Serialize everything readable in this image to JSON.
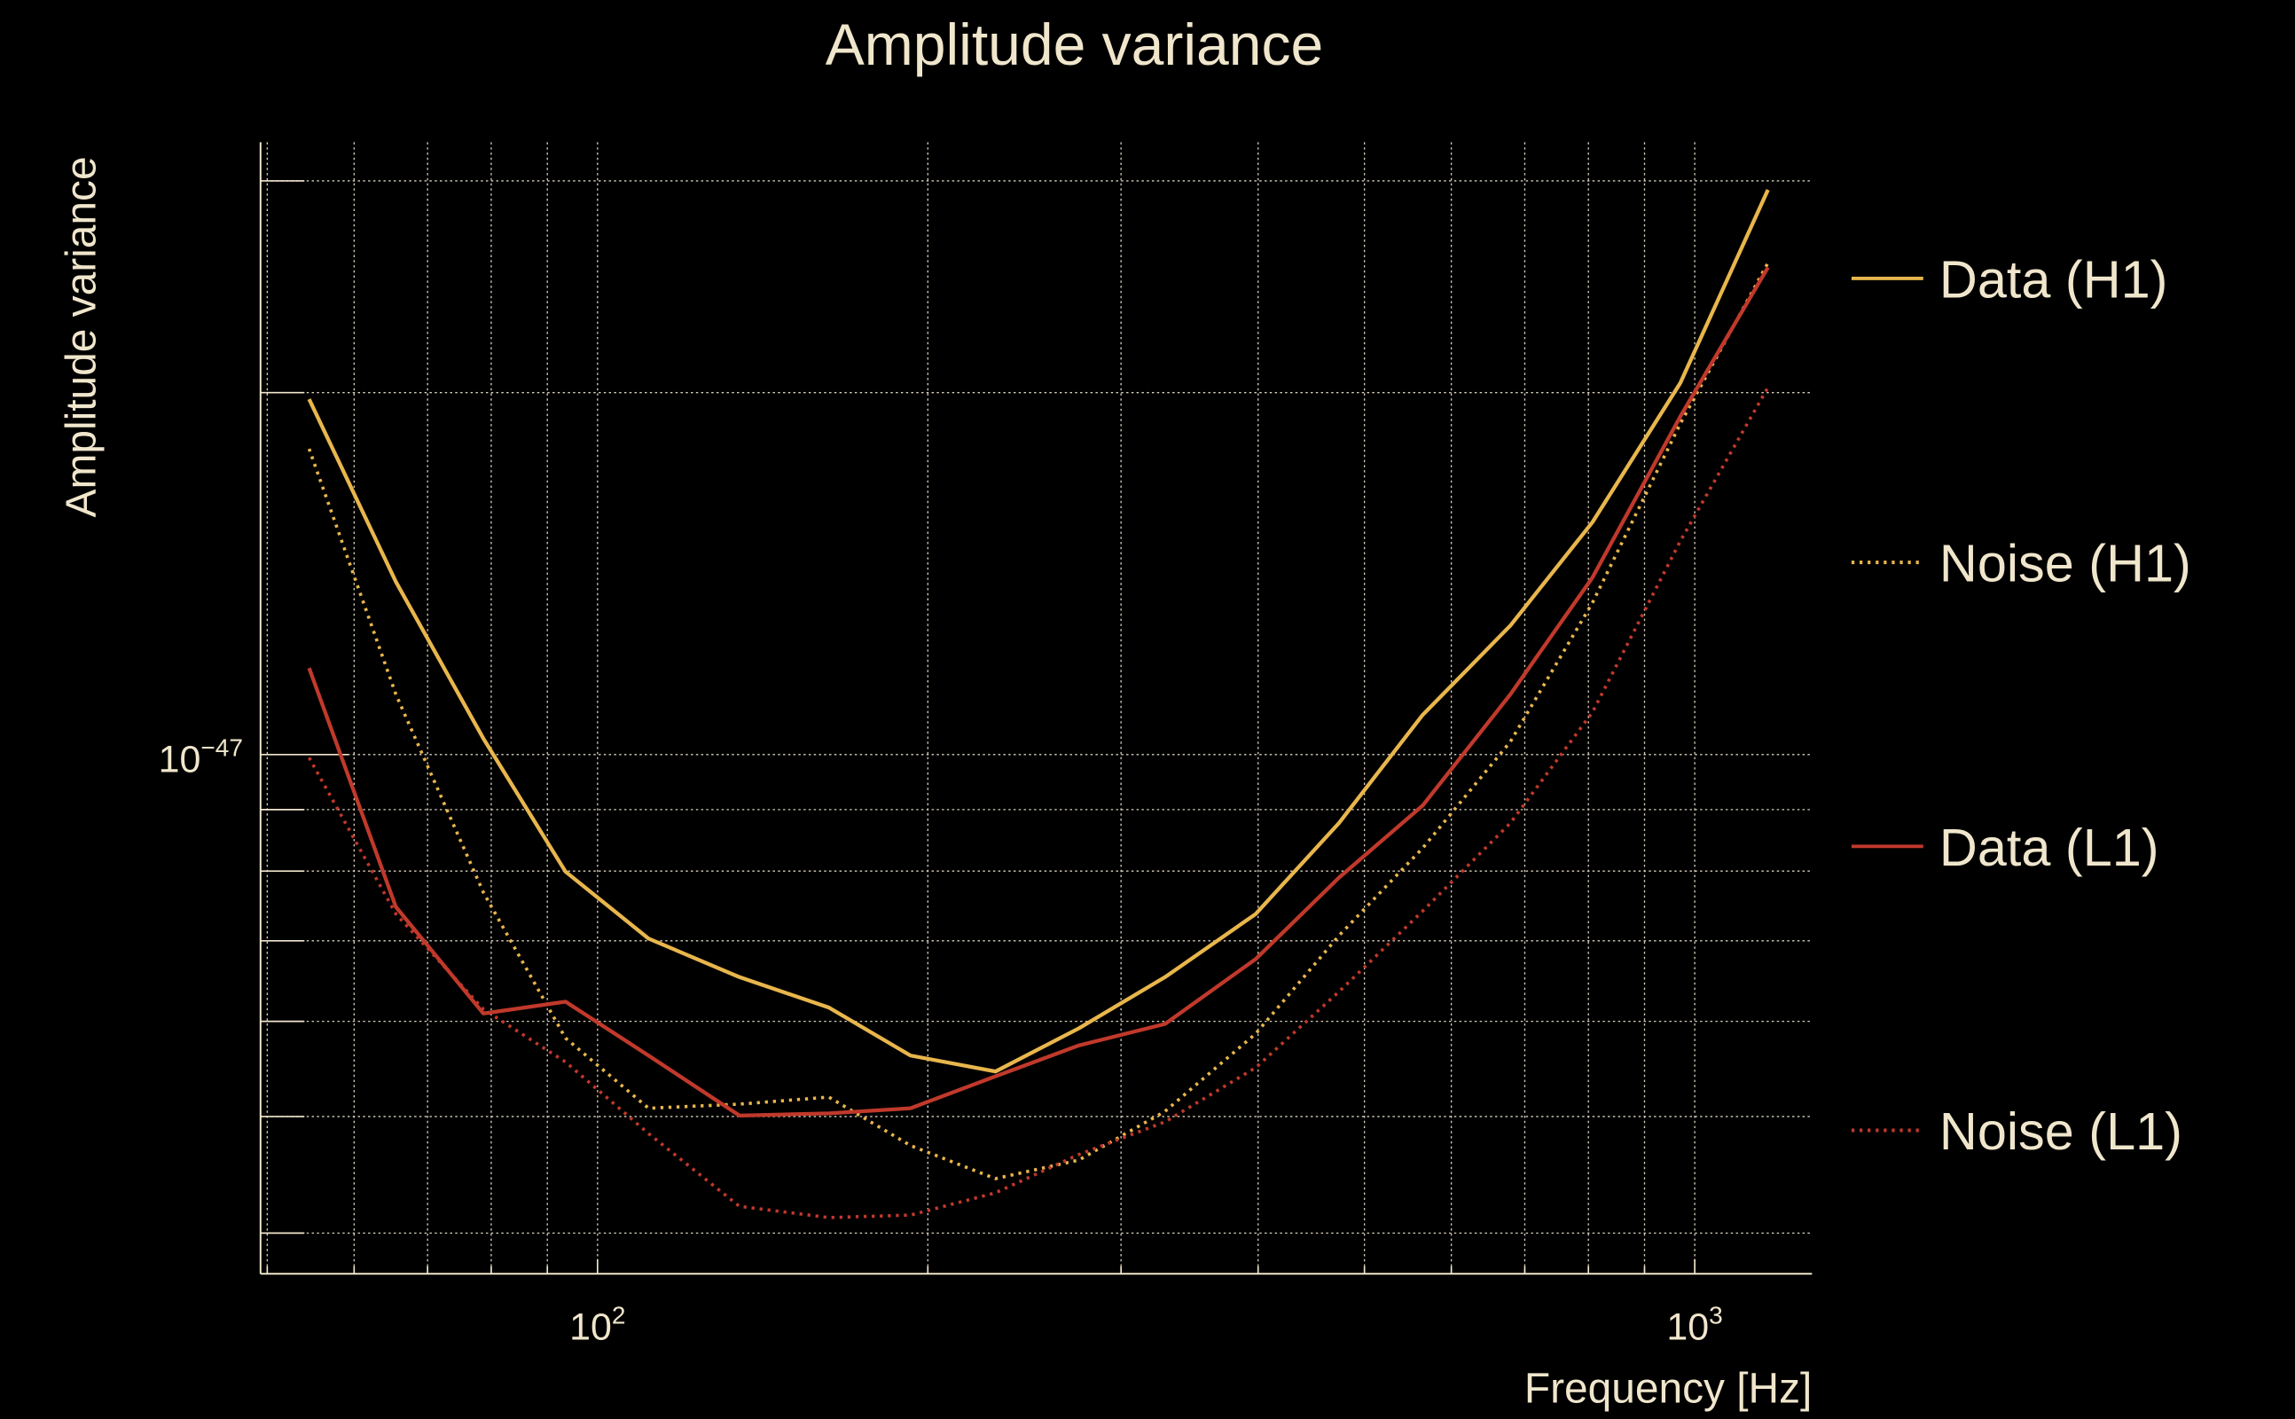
{
  "chart_data": {
    "type": "line",
    "title": "Amplitude variance",
    "xlabel": "Frequency [Hz]",
    "ylabel": "Amplitude variance",
    "xscale": "log",
    "yscale": "log",
    "xlim": [
      49.3,
      1279
    ],
    "ylim": [
      3.7e-48,
      3.23e-47
    ],
    "grid": true,
    "legend_placement": "right-outside",
    "x_tick_labels": [
      {
        "value": 100,
        "base": "10",
        "exp": "2"
      },
      {
        "value": 1000,
        "base": "10",
        "exp": "3"
      }
    ],
    "y_tick_labels": [
      {
        "value": 1e-47,
        "base": "10",
        "exp": "−47"
      }
    ],
    "x": [
      54.6,
      65.5,
      78.7,
      93.5,
      111.3,
      134.7,
      162.5,
      192.9,
      230.5,
      274.6,
      329,
      398,
      474,
      565,
      679,
      807,
      970,
      1166
    ],
    "series": [
      {
        "name": "Data (H1)",
        "color": "#e8b64c",
        "style": "solid",
        "values": [
          1.975e-47,
          1.392e-47,
          1.031e-47,
          7.99e-48,
          7.03e-48,
          6.53e-48,
          6.16e-48,
          5.62e-48,
          5.45e-48,
          5.92e-48,
          6.53e-48,
          7.37e-48,
          8.77e-48,
          1.079e-47,
          1.28e-47,
          1.561e-47,
          2.037e-47,
          2.949e-47
        ]
      },
      {
        "name": "Noise (H1)",
        "color": "#e8b64c",
        "style": "dotted",
        "values": [
          1.796e-47,
          1.122e-47,
          7.68e-48,
          5.81e-48,
          5.08e-48,
          5.12e-48,
          5.19e-48,
          4.73e-48,
          4.44e-48,
          4.6e-48,
          5.05e-48,
          5.86e-48,
          7.07e-48,
          8.36e-48,
          1.025e-47,
          1.338e-47,
          1.884e-47,
          2.564e-47
        ]
      },
      {
        "name": "Data (L1)",
        "color": "#c0392b",
        "style": "solid",
        "values": [
          1.18e-47,
          7.47e-48,
          6.09e-48,
          6.23e-48,
          5.62e-48,
          5.01e-48,
          5.03e-48,
          5.08e-48,
          5.4e-48,
          5.73e-48,
          5.97e-48,
          6.76e-48,
          7.9e-48,
          9.07e-48,
          1.122e-47,
          1.404e-47,
          1.91e-47,
          2.542e-47
        ]
      },
      {
        "name": "Noise (L1)",
        "color": "#c0392b",
        "style": "dotted",
        "values": [
          9.94e-48,
          7.37e-48,
          6.14e-48,
          5.55e-48,
          4.84e-48,
          4.21e-48,
          4.12e-48,
          4.14e-48,
          4.32e-48,
          4.65e-48,
          4.95e-48,
          5.49e-48,
          6.35e-48,
          7.41e-48,
          8.77e-48,
          1.085e-47,
          1.505e-47,
          2.02e-47
        ]
      }
    ]
  }
}
